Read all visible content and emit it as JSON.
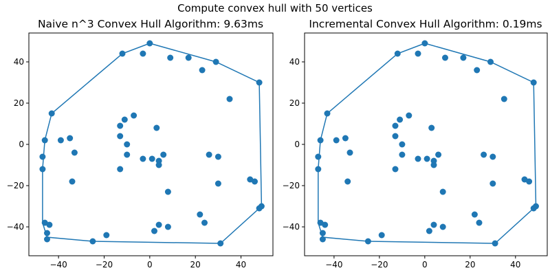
{
  "suptitle": "Compute convex hull with 50 vertices",
  "colors": {
    "series": "#1f77b4",
    "axes": "#000000",
    "background": "#ffffff"
  },
  "chart_data": [
    {
      "type": "scatter",
      "title": "Naive n^3 Convex Hull Algorithm: 9.63ms",
      "xlabel": "",
      "ylabel": "",
      "xlim": [
        -53,
        54
      ],
      "ylim": [
        -54,
        54
      ],
      "xticks": [
        -40,
        -20,
        0,
        20,
        40
      ],
      "yticks": [
        -40,
        -20,
        0,
        20,
        40
      ],
      "xtick_labels": [
        "−40",
        "−20",
        "0",
        "20",
        "40"
      ],
      "ytick_labels": [
        "−40",
        "−20",
        "0",
        "20",
        "40"
      ],
      "grid": false,
      "series": [
        {
          "kind": "points",
          "x": [
            -12,
            -3,
            0,
            9,
            17,
            23,
            29,
            35,
            48,
            -43,
            -35,
            -33,
            -39,
            -46,
            -47,
            -47,
            -13,
            -11,
            -7,
            -13,
            -10,
            -10,
            -13,
            3,
            1,
            6,
            4,
            4,
            26,
            30,
            30,
            8,
            -3,
            44,
            46,
            48,
            49,
            -34,
            -46,
            -44,
            -45,
            -45,
            31,
            22,
            24,
            8,
            4,
            2,
            -19,
            -25
          ],
          "y": [
            44,
            44,
            49,
            42,
            42,
            36,
            40,
            22,
            30,
            15,
            3,
            -4,
            2,
            2,
            -6,
            -12,
            9,
            12,
            14,
            4,
            0,
            -5,
            -12,
            8,
            -7,
            -5,
            -8,
            -10,
            -5,
            -6,
            -19,
            -23,
            -7,
            -17,
            -18,
            -31,
            -30,
            -18,
            -38,
            -39,
            -43,
            -46,
            -48,
            -34,
            -38,
            -40,
            -39,
            -42,
            -44,
            -47
          ]
        },
        {
          "kind": "hull",
          "x": [
            0,
            29,
            48,
            49,
            31,
            -25,
            -45,
            -47,
            -47,
            -46,
            -43,
            -12,
            0
          ],
          "y": [
            49,
            40,
            30,
            -30,
            -48,
            -47,
            -45,
            -38,
            -12,
            2,
            15,
            44,
            49
          ]
        }
      ]
    },
    {
      "type": "scatter",
      "title": "Incremental Convex Hull Algorithm: 0.19ms",
      "xlabel": "",
      "ylabel": "",
      "xlim": [
        -53,
        54
      ],
      "ylim": [
        -54,
        54
      ],
      "xticks": [
        -40,
        -20,
        0,
        20,
        40
      ],
      "yticks": [
        -40,
        -20,
        0,
        20,
        40
      ],
      "xtick_labels": [
        "−40",
        "−20",
        "0",
        "20",
        "40"
      ],
      "ytick_labels": [
        "−40",
        "−20",
        "0",
        "20",
        "40"
      ],
      "grid": false,
      "series": [
        {
          "kind": "points",
          "x": [
            -12,
            -3,
            0,
            9,
            17,
            23,
            29,
            35,
            48,
            -43,
            -35,
            -33,
            -39,
            -46,
            -47,
            -47,
            -13,
            -11,
            -7,
            -13,
            -10,
            -10,
            -13,
            3,
            1,
            6,
            4,
            4,
            26,
            30,
            30,
            8,
            -3,
            44,
            46,
            48,
            49,
            -34,
            -46,
            -44,
            -45,
            -45,
            31,
            22,
            24,
            8,
            4,
            2,
            -19,
            -25
          ],
          "y": [
            44,
            44,
            49,
            42,
            42,
            36,
            40,
            22,
            30,
            15,
            3,
            -4,
            2,
            2,
            -6,
            -12,
            9,
            12,
            14,
            4,
            0,
            -5,
            -12,
            8,
            -7,
            -5,
            -8,
            -10,
            -5,
            -6,
            -19,
            -23,
            -7,
            -17,
            -18,
            -31,
            -30,
            -18,
            -38,
            -39,
            -43,
            -46,
            -48,
            -34,
            -38,
            -40,
            -39,
            -42,
            -44,
            -47
          ]
        },
        {
          "kind": "hull",
          "x": [
            0,
            29,
            48,
            49,
            31,
            -25,
            -45,
            -47,
            -47,
            -46,
            -43,
            -12,
            0
          ],
          "y": [
            49,
            40,
            30,
            -30,
            -48,
            -47,
            -45,
            -38,
            -12,
            2,
            15,
            44,
            49
          ]
        }
      ]
    }
  ]
}
